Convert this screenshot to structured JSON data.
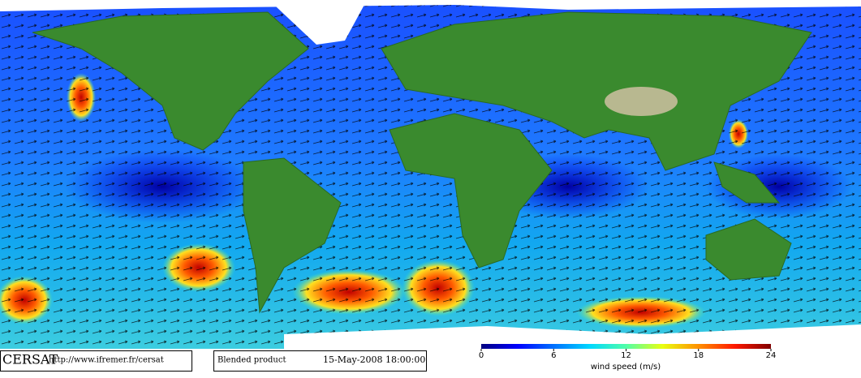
{
  "map": {
    "organization": "CERSAT",
    "url": "http://www.ifremer.fr/cersat",
    "product": "Blended product",
    "timestamp": "15-May-2008 18:00:00",
    "colorbar": {
      "label": "wind speed (m/s)",
      "range": [
        0,
        24
      ],
      "ticks": [
        0,
        6,
        12,
        18,
        24
      ],
      "colors": [
        "#00007f",
        "#0000ff",
        "#0070ff",
        "#00d8ff",
        "#50ffa8",
        "#e8ff10",
        "#ff9000",
        "#ff1800",
        "#800000"
      ]
    }
  }
}
